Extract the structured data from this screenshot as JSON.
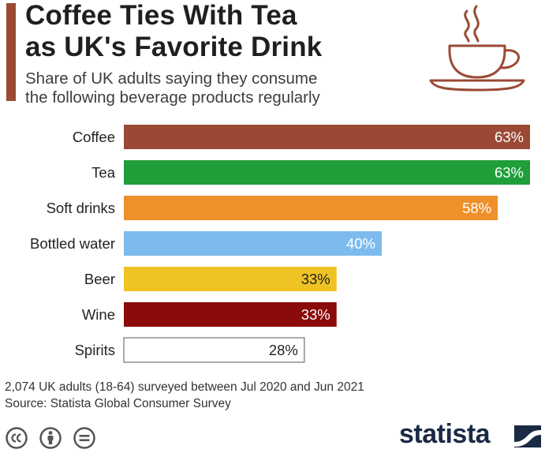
{
  "header": {
    "title_line1": "Coffee Ties With Tea",
    "title_line2": "as UK's Favorite Drink",
    "subtitle_line1": "Share of UK adults saying they consume",
    "subtitle_line2": "the following beverage products regularly"
  },
  "chart_data": {
    "type": "bar",
    "orientation": "horizontal",
    "categories": [
      "Coffee",
      "Tea",
      "Soft drinks",
      "Bottled water",
      "Beer",
      "Wine",
      "Spirits"
    ],
    "values": [
      63,
      63,
      58,
      40,
      33,
      33,
      28
    ],
    "value_labels": [
      "63%",
      "63%",
      "58%",
      "40%",
      "33%",
      "33%",
      "28%"
    ],
    "colors": [
      "#9a4a34",
      "#1f9e3a",
      "#f0902a",
      "#7dbbee",
      "#f0c324",
      "#8b0a0a",
      "#ffffff"
    ],
    "label_colors": [
      "#ffffff",
      "#ffffff",
      "#ffffff",
      "#ffffff",
      "#1f1f1f",
      "#ffffff",
      "#1f1f1f"
    ],
    "unit": "%",
    "xlim": [
      0,
      63
    ]
  },
  "footer": {
    "note": "2,074 UK adults (18-64) surveyed between Jul 2020 and Jun 2021",
    "source": "Source: Statista Global Consumer Survey"
  },
  "brand": {
    "logo_text": "statista",
    "accent": "#9a4a34",
    "dark": "#1b2a44"
  },
  "icons": [
    "coffee-cup-icon",
    "creative-commons-icon",
    "attribution-icon",
    "no-derivatives-icon",
    "statista-logo-icon"
  ]
}
